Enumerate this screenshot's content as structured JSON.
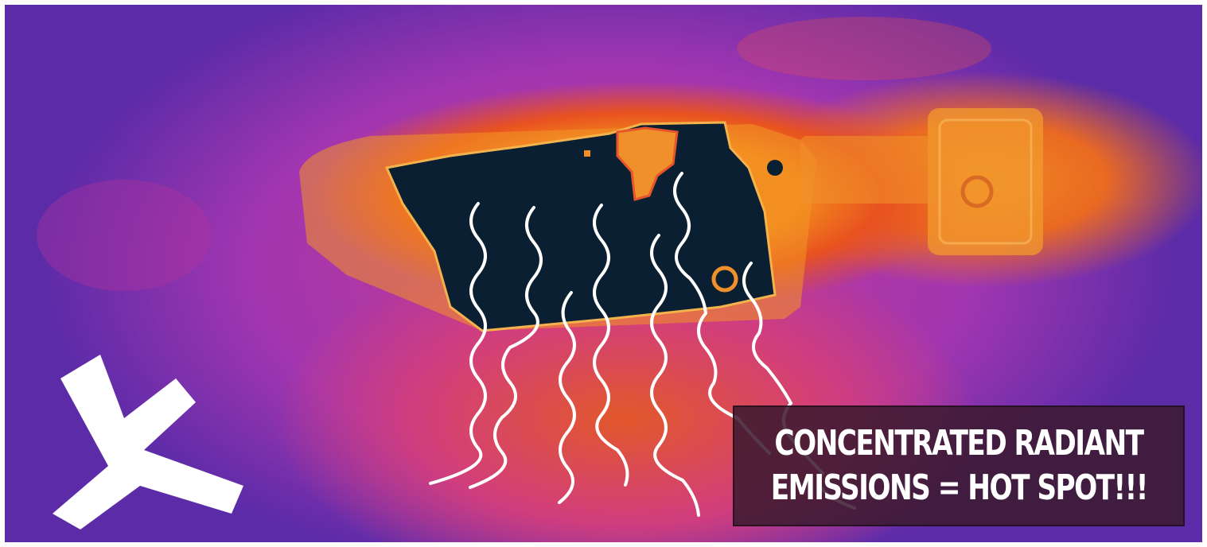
{
  "caption": {
    "line1": "CONCENTRATED RADIANT",
    "line2": "EMISSIONS = HOT SPOT!!!"
  },
  "icons": {
    "brand": "x-logo-icon",
    "waves": "heat-wave-lines-icon"
  },
  "colors": {
    "hot": "#f38a1e",
    "warm": "#d23e7c",
    "cool": "#5b2ba8",
    "object": "#0b1f33",
    "caption_bg": "#3a1a2e",
    "caption_text": "#ffffff"
  }
}
